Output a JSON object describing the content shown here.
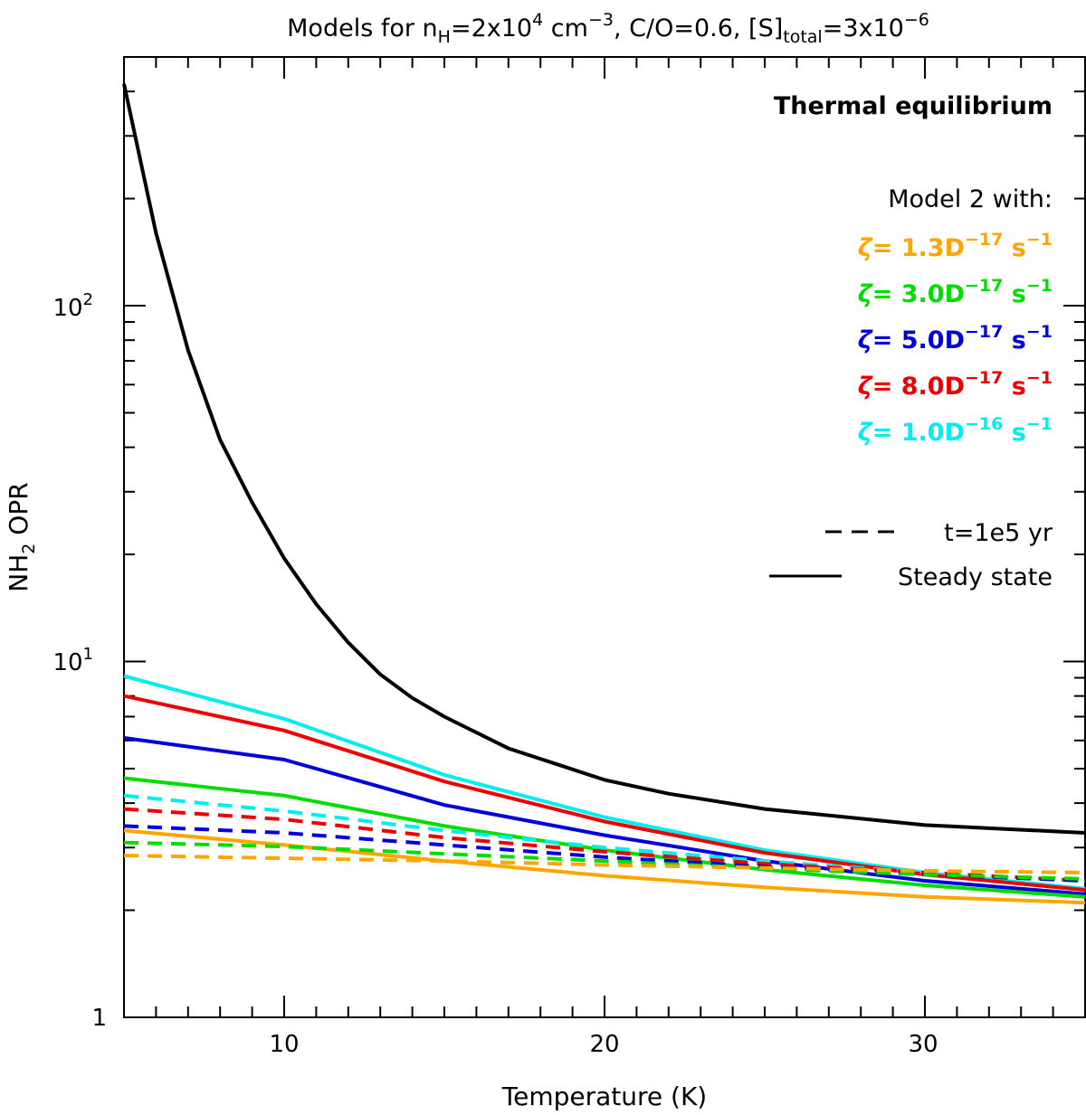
{
  "chart_data": {
    "type": "line",
    "title": {
      "prefix": "Models for n",
      "nh_sub": "H",
      "nh_val": "=2x10",
      "nh_exp": "4",
      "cm": " cm",
      "cm_exp": "−3",
      "co": ", C/O=0.6, [S]",
      "s_sub": "total",
      "s_val": "=3x10",
      "s_exp": "−6"
    },
    "xlabel": "Temperature (K)",
    "ylabel": {
      "base": "NH",
      "sub": "2",
      "rest": " OPR"
    },
    "xlim": [
      5,
      35
    ],
    "ylim": [
      1,
      500
    ],
    "yscale": "log",
    "x_ticks": [
      10,
      20,
      30
    ],
    "x_tick_labels": [
      "10",
      "20",
      "30"
    ],
    "y_ticks": [
      1,
      10,
      100
    ],
    "y_tick_labels": [
      {
        "base": "1",
        "exp": ""
      },
      {
        "base": "10",
        "exp": "1"
      },
      {
        "base": "10",
        "exp": "2"
      }
    ],
    "annotation": "Thermal equilibrium",
    "legend_header": "Model 2 with:",
    "colors": {
      "black": "#000000",
      "orange": "#ffa500",
      "green": "#00dd00",
      "blue": "#0000dd",
      "red": "#ee0000",
      "cyan": "#00eeee"
    },
    "legend_items": [
      {
        "symbol": "ζ",
        "eq": "= ",
        "mant": "1.3D",
        "exp": "−17",
        "unit": " s",
        "unit_exp": "−1",
        "color": "#ffa500"
      },
      {
        "symbol": "ζ",
        "eq": "= ",
        "mant": "3.0D",
        "exp": "−17",
        "unit": " s",
        "unit_exp": "−1",
        "color": "#00dd00"
      },
      {
        "symbol": "ζ",
        "eq": "= ",
        "mant": "5.0D",
        "exp": "−17",
        "unit": " s",
        "unit_exp": "−1",
        "color": "#0000dd"
      },
      {
        "symbol": "ζ",
        "eq": "= ",
        "mant": "8.0D",
        "exp": "−17",
        "unit": " s",
        "unit_exp": "−1",
        "color": "#ee0000"
      },
      {
        "symbol": "ζ",
        "eq": "= ",
        "mant": "1.0D",
        "exp": "−16",
        "unit": " s",
        "unit_exp": "−1",
        "color": "#00eeee"
      }
    ],
    "style_legend": [
      {
        "label": "t=1e5 yr",
        "style": "dashed"
      },
      {
        "label": "Steady state",
        "style": "solid"
      }
    ],
    "series": [
      {
        "name": "Thermal equilibrium",
        "style": "solid",
        "color": "#000000",
        "x": [
          5,
          6,
          7,
          8,
          9,
          10,
          11,
          12,
          13,
          14,
          15,
          17,
          20,
          22,
          25,
          30,
          35
        ],
        "y": [
          420,
          160,
          75,
          42,
          28,
          19.5,
          14.5,
          11.3,
          9.2,
          7.9,
          7.0,
          5.7,
          4.65,
          4.25,
          3.85,
          3.47,
          3.3
        ]
      },
      {
        "name": "ζ=1.0D-16 steady",
        "style": "solid",
        "color": "#00eeee",
        "x": [
          5,
          10,
          15,
          20,
          25,
          30,
          35
        ],
        "y": [
          9.1,
          6.9,
          4.8,
          3.65,
          2.95,
          2.55,
          2.3
        ]
      },
      {
        "name": "ζ=8.0D-17 steady",
        "style": "solid",
        "color": "#ee0000",
        "x": [
          5,
          10,
          15,
          20,
          25,
          30,
          35
        ],
        "y": [
          8.0,
          6.4,
          4.6,
          3.55,
          2.9,
          2.52,
          2.28
        ]
      },
      {
        "name": "ζ=5.0D-17 steady",
        "style": "solid",
        "color": "#0000dd",
        "x": [
          5,
          10,
          15,
          20,
          25,
          30,
          35
        ],
        "y": [
          6.1,
          5.3,
          3.95,
          3.25,
          2.75,
          2.42,
          2.22
        ]
      },
      {
        "name": "ζ=3.0D-17 steady",
        "style": "solid",
        "color": "#00dd00",
        "x": [
          5,
          10,
          15,
          20,
          25,
          30,
          35
        ],
        "y": [
          4.7,
          4.2,
          3.45,
          2.95,
          2.6,
          2.35,
          2.18
        ]
      },
      {
        "name": "ζ=1.3D-17 steady",
        "style": "solid",
        "color": "#ffa500",
        "x": [
          5,
          10,
          15,
          20,
          25,
          30,
          35
        ],
        "y": [
          3.35,
          3.05,
          2.75,
          2.5,
          2.32,
          2.18,
          2.1
        ]
      },
      {
        "name": "ζ=1.0D-16 t=1e5 yr",
        "style": "dashed",
        "color": "#00eeee",
        "x": [
          5,
          10,
          15,
          20,
          25,
          30,
          35
        ],
        "y": [
          4.2,
          3.8,
          3.35,
          3.0,
          2.75,
          2.55,
          2.42
        ]
      },
      {
        "name": "ζ=8.0D-17 t=1e5 yr",
        "style": "dashed",
        "color": "#ee0000",
        "x": [
          5,
          10,
          15,
          20,
          25,
          30,
          35
        ],
        "y": [
          3.85,
          3.6,
          3.2,
          2.92,
          2.7,
          2.55,
          2.42
        ]
      },
      {
        "name": "ζ=5.0D-17 t=1e5 yr",
        "style": "dashed",
        "color": "#0000dd",
        "x": [
          5,
          10,
          15,
          20,
          25,
          30,
          35
        ],
        "y": [
          3.45,
          3.3,
          3.05,
          2.82,
          2.65,
          2.52,
          2.42
        ]
      },
      {
        "name": "ζ=3.0D-17 t=1e5 yr",
        "style": "dashed",
        "color": "#00dd00",
        "x": [
          5,
          10,
          15,
          20,
          25,
          30,
          35
        ],
        "y": [
          3.1,
          3.02,
          2.88,
          2.75,
          2.62,
          2.52,
          2.45
        ]
      },
      {
        "name": "ζ=1.3D-17 t=1e5 yr",
        "style": "dashed",
        "color": "#ffa500",
        "x": [
          5,
          10,
          15,
          20,
          25,
          30,
          35
        ],
        "y": [
          2.85,
          2.8,
          2.75,
          2.68,
          2.63,
          2.58,
          2.55
        ]
      }
    ]
  }
}
